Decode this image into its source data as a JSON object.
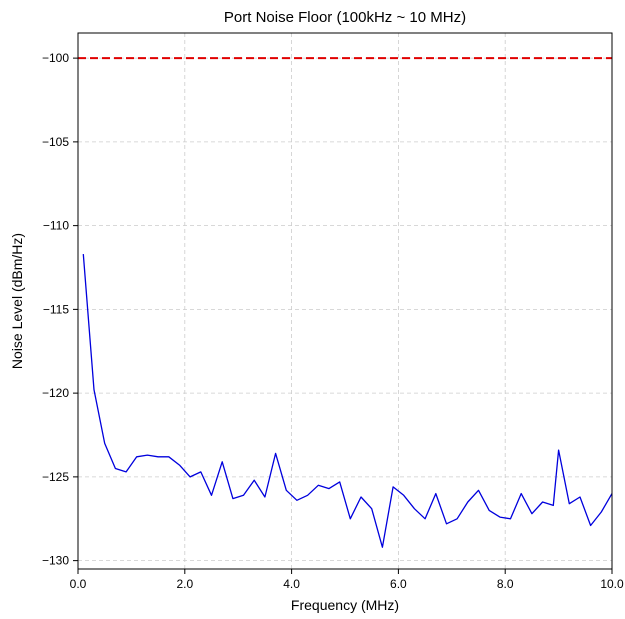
{
  "chart_data": {
    "type": "line",
    "title": "Port Noise Floor (100kHz ~ 10 MHz)",
    "xlabel": "Frequency (MHz)",
    "ylabel": "Noise Level (dBm/Hz)",
    "xlim": [
      0,
      10
    ],
    "ylim": [
      -130.5,
      -98.5
    ],
    "grid": true,
    "x_ticks": [
      0,
      2,
      4,
      6,
      8,
      10
    ],
    "x_tick_labels": [
      "0.0",
      "2.0",
      "4.0",
      "6.0",
      "8.0",
      "10.0"
    ],
    "y_ticks": [
      -100,
      -105,
      -110,
      -115,
      -120,
      -125,
      -130
    ],
    "y_tick_labels": [
      "−100",
      "−105",
      "−110",
      "−115",
      "−120",
      "−125",
      "−130"
    ],
    "threshold": {
      "y": -100,
      "color": "#e00000",
      "style": "dashed"
    },
    "series": [
      {
        "color": "#0000dd",
        "x": [
          0.1,
          0.3,
          0.5,
          0.7,
          0.9,
          1.1,
          1.3,
          1.5,
          1.7,
          1.9,
          2.1,
          2.3,
          2.5,
          2.7,
          2.9,
          3.1,
          3.3,
          3.5,
          3.7,
          3.9,
          4.1,
          4.3,
          4.5,
          4.7,
          4.9,
          5.1,
          5.3,
          5.5,
          5.7,
          5.9,
          6.1,
          6.3,
          6.5,
          6.7,
          6.9,
          7.1,
          7.3,
          7.5,
          7.7,
          7.9,
          8.1,
          8.3,
          8.5,
          8.7,
          8.9,
          9.0,
          9.2,
          9.4,
          9.6,
          9.8,
          10.0
        ],
        "y": [
          -111.7,
          -119.8,
          -123.0,
          -124.5,
          -124.7,
          -123.8,
          -123.7,
          -123.8,
          -123.8,
          -124.3,
          -125.0,
          -124.7,
          -126.1,
          -124.1,
          -126.3,
          -126.1,
          -125.2,
          -126.2,
          -123.6,
          -125.8,
          -126.4,
          -126.1,
          -125.5,
          -125.7,
          -125.3,
          -127.5,
          -126.2,
          -126.9,
          -129.2,
          -125.6,
          -126.1,
          -126.9,
          -127.5,
          -126.0,
          -127.8,
          -127.5,
          -126.5,
          -125.8,
          -127.0,
          -127.4,
          -127.5,
          -126.0,
          -127.2,
          -126.5,
          -126.7,
          -123.4,
          -126.6,
          -126.2,
          -127.9,
          -127.1,
          -126.0
        ]
      }
    ]
  }
}
